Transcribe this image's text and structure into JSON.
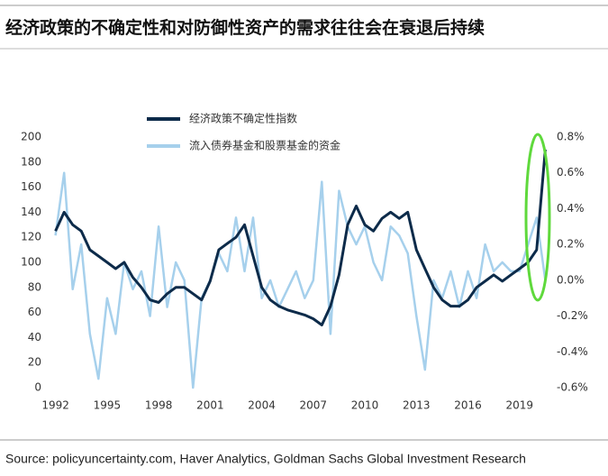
{
  "chart_data": {
    "type": "line",
    "title": "经济政策的不确定性和对防御性资产的需求往往会在衰退后持续",
    "source": "Source: policyuncertainty.com, Haver Analytics, Goldman Sachs Global Investment Research",
    "x": [
      1992.0,
      1992.5,
      1993.0,
      1993.5,
      1994.0,
      1994.5,
      1995.0,
      1995.5,
      1996.0,
      1996.5,
      1997.0,
      1997.5,
      1998.0,
      1998.5,
      1999.0,
      1999.5,
      2000.0,
      2000.5,
      2001.0,
      2001.5,
      2002.0,
      2002.5,
      2003.0,
      2003.5,
      2004.0,
      2004.5,
      2005.0,
      2005.5,
      2006.0,
      2006.5,
      2007.0,
      2007.5,
      2008.0,
      2008.5,
      2009.0,
      2009.5,
      2010.0,
      2010.5,
      2011.0,
      2011.5,
      2012.0,
      2012.5,
      2013.0,
      2013.5,
      2014.0,
      2014.5,
      2015.0,
      2015.5,
      2016.0,
      2016.5,
      2017.0,
      2017.5,
      2018.0,
      2018.5,
      2019.0,
      2019.5,
      2020.0,
      2020.5
    ],
    "series": [
      {
        "name": "经济政策不确定性指数",
        "color": "#0d2b4a",
        "axis": "y",
        "values": [
          125,
          140,
          130,
          125,
          110,
          105,
          100,
          95,
          100,
          88,
          80,
          70,
          68,
          75,
          80,
          80,
          75,
          70,
          85,
          110,
          115,
          120,
          130,
          105,
          80,
          70,
          65,
          62,
          60,
          58,
          55,
          50,
          65,
          90,
          130,
          145,
          130,
          125,
          135,
          140,
          135,
          140,
          110,
          95,
          80,
          70,
          65,
          65,
          70,
          80,
          85,
          90,
          85,
          90,
          95,
          100,
          110,
          190
        ]
      },
      {
        "name": "流入债券基金和股票基金的资金",
        "color": "#a6d0ec",
        "axis": "y2",
        "values": [
          0.25,
          0.6,
          -0.05,
          0.2,
          -0.3,
          -0.55,
          -0.1,
          -0.3,
          0.1,
          -0.05,
          0.05,
          -0.2,
          0.3,
          -0.15,
          0.1,
          0.0,
          -0.6,
          -0.1,
          0.0,
          0.15,
          0.05,
          0.35,
          0.05,
          0.35,
          -0.1,
          0.0,
          -0.15,
          -0.05,
          0.05,
          -0.1,
          0.0,
          0.55,
          -0.3,
          0.5,
          0.3,
          0.2,
          0.3,
          0.1,
          0.0,
          0.3,
          0.25,
          0.15,
          -0.2,
          -0.5,
          0.0,
          -0.1,
          0.05,
          -0.15,
          0.05,
          -0.1,
          0.2,
          0.05,
          0.1,
          0.05,
          0.05,
          0.2,
          0.35,
          0.0
        ]
      }
    ],
    "xlim": [
      1991.6,
      2020.9
    ],
    "xticks": [
      1992,
      1995,
      1998,
      2001,
      2004,
      2007,
      2010,
      2013,
      2016,
      2019
    ],
    "ylim": [
      0,
      200
    ],
    "yticks": [
      0,
      20,
      40,
      60,
      80,
      100,
      120,
      140,
      160,
      180,
      200
    ],
    "y2lim": [
      -0.6,
      0.8
    ],
    "y2ticks": [
      {
        "value": -0.6,
        "label": "-0.6%"
      },
      {
        "value": -0.4,
        "label": "-0.4%"
      },
      {
        "value": -0.2,
        "label": "-0.2%"
      },
      {
        "value": 0,
        "label": "0.0%"
      },
      {
        "value": 0.2,
        "label": "0.2%"
      },
      {
        "value": 0.4,
        "label": "0.4%"
      },
      {
        "value": 0.6,
        "label": "0.6%"
      },
      {
        "value": 0.8,
        "label": "0.8%"
      }
    ]
  }
}
